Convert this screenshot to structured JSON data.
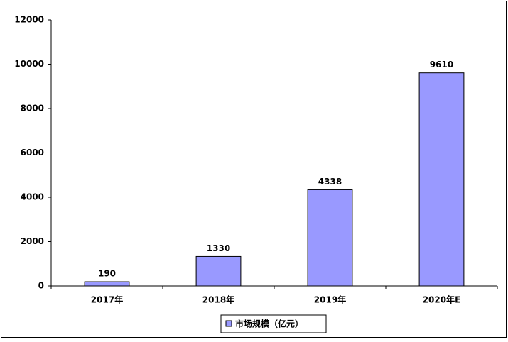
{
  "chart_data": {
    "type": "bar",
    "categories": [
      "2017年",
      "2018年",
      "2019年",
      "2020年E"
    ],
    "series": [
      {
        "name": "市场规模（亿元）",
        "color": "#9999ff",
        "values": [
          190,
          1330,
          4338,
          9610
        ]
      }
    ],
    "ylim": [
      0,
      12000
    ],
    "yticks": [
      0,
      2000,
      4000,
      6000,
      8000,
      10000,
      12000
    ],
    "grid": false,
    "data_labels": true,
    "legend": "bottom"
  }
}
